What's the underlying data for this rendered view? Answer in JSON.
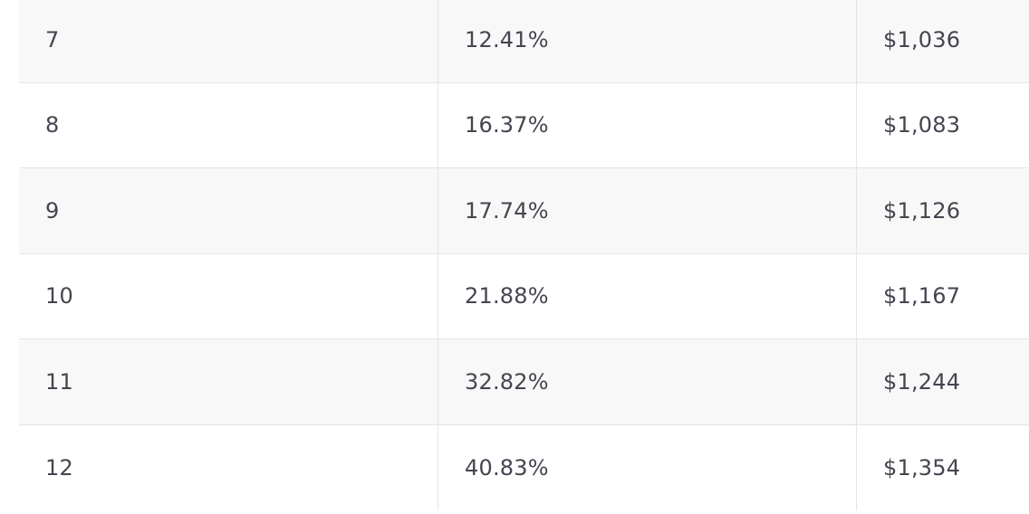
{
  "table": {
    "rows": [
      [
        "7",
        "12.41%",
        "$1,036"
      ],
      [
        "8",
        "16.37%",
        "$1,083"
      ],
      [
        "9",
        "17.74%",
        "$1,126"
      ],
      [
        "10",
        "21.88%",
        "$1,167"
      ],
      [
        "11",
        "32.82%",
        "$1,244"
      ],
      [
        "12",
        "40.83%",
        "$1,354"
      ]
    ]
  }
}
